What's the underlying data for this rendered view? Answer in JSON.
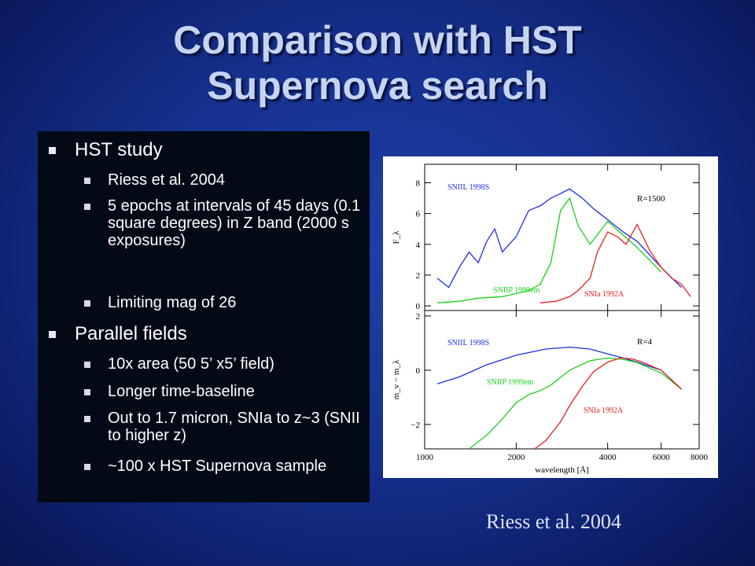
{
  "slide": {
    "title_line1": "Comparison with HST",
    "title_line2": "Supernova search",
    "sections": [
      {
        "heading": "HST study",
        "items": [
          "Riess et al. 2004",
          "5 epochs  at intervals of 45 days (0.1 square degrees) in Z band (2000 s exposures)",
          "Limiting mag of 26"
        ]
      },
      {
        "heading": "Parallel fields",
        "items": [
          "10x area (50 5’ x5’ field)",
          "Longer time-baseline",
          "Out to 1.7  micron, SNIa to z~3 (SNII to higher z)",
          "~100 x HST Supernova sample"
        ]
      }
    ],
    "caption": "Riess et al. 2004"
  },
  "chart_data": [
    {
      "type": "line",
      "ylabel": "F_λ",
      "annotation": "R=1500",
      "ylim": [
        -0.3,
        9.2
      ],
      "yticks": [
        0,
        2,
        4,
        6,
        8
      ],
      "series": [
        {
          "name": "SNIIL 1998S",
          "color": "#1e2ee6",
          "x": [
            1100,
            1200,
            1300,
            1400,
            1500,
            1600,
            1700,
            1800,
            2000,
            2200,
            2400,
            2600,
            2800,
            3000,
            3300,
            3600,
            4000,
            4500,
            5000,
            6000,
            7000
          ],
          "y": [
            1.8,
            1.2,
            2.5,
            3.5,
            2.8,
            4.2,
            5.0,
            3.5,
            4.5,
            6.2,
            6.5,
            7.0,
            7.3,
            7.6,
            7.0,
            6.3,
            5.6,
            4.8,
            4.2,
            2.5,
            1.2
          ]
        },
        {
          "name": "SNIIP 1999em",
          "color": "#1ad11a",
          "x": [
            1100,
            1300,
            1500,
            1800,
            2000,
            2200,
            2400,
            2600,
            2800,
            3000,
            3200,
            3500,
            4000,
            4500,
            5000,
            6000
          ],
          "y": [
            0.2,
            0.3,
            0.5,
            0.6,
            0.8,
            1.0,
            1.4,
            2.8,
            6.2,
            7.0,
            5.2,
            4.0,
            5.5,
            4.6,
            3.8,
            2.2
          ]
        },
        {
          "name": "SNIa 1992A",
          "color": "#e82020",
          "x": [
            2400,
            2700,
            3000,
            3200,
            3500,
            3700,
            4000,
            4300,
            4600,
            5000,
            5500,
            6000,
            6500,
            7000,
            7500
          ],
          "y": [
            0.2,
            0.3,
            0.6,
            1.0,
            1.8,
            3.5,
            4.8,
            4.5,
            4.0,
            5.3,
            3.6,
            2.5,
            1.8,
            1.4,
            0.6
          ]
        }
      ]
    },
    {
      "type": "line",
      "xlabel": "wavelength [Å]",
      "ylabel": "m_v − m_λ",
      "annotation": "R=4",
      "x_scale": "log",
      "xlim": [
        1000,
        8000
      ],
      "ylim": [
        -2.9,
        2.2
      ],
      "xticks": [
        1000,
        2000,
        4000,
        6000,
        8000
      ],
      "yticks": [
        -2,
        0,
        2
      ],
      "series": [
        {
          "name": "SNIIL 1998S",
          "color": "#1e2ee6",
          "x": [
            1100,
            1300,
            1600,
            2000,
            2500,
            3000,
            3500,
            4000,
            4500,
            5000,
            6000,
            7000
          ],
          "y": [
            -0.5,
            -0.25,
            0.2,
            0.55,
            0.78,
            0.85,
            0.78,
            0.6,
            0.45,
            0.3,
            0.0,
            -0.7
          ]
        },
        {
          "name": "SNIIP 1999em",
          "color": "#1ad11a",
          "x": [
            1400,
            1600,
            1800,
            2000,
            2200,
            2400,
            2600,
            3000,
            3500,
            4000,
            4500,
            5000,
            6000,
            7000
          ],
          "y": [
            -3.0,
            -2.4,
            -1.8,
            -1.2,
            -0.9,
            -0.75,
            -0.55,
            0.0,
            0.35,
            0.45,
            0.4,
            0.28,
            -0.1,
            -0.7
          ]
        },
        {
          "name": "SNIa 1992A",
          "color": "#e82020",
          "x": [
            2300,
            2500,
            2800,
            3000,
            3300,
            3600,
            4000,
            4400,
            4800,
            5200,
            6000,
            7000
          ],
          "y": [
            -3.0,
            -2.6,
            -1.9,
            -1.3,
            -0.6,
            -0.05,
            0.3,
            0.45,
            0.42,
            0.3,
            0.0,
            -0.7
          ]
        }
      ]
    }
  ]
}
